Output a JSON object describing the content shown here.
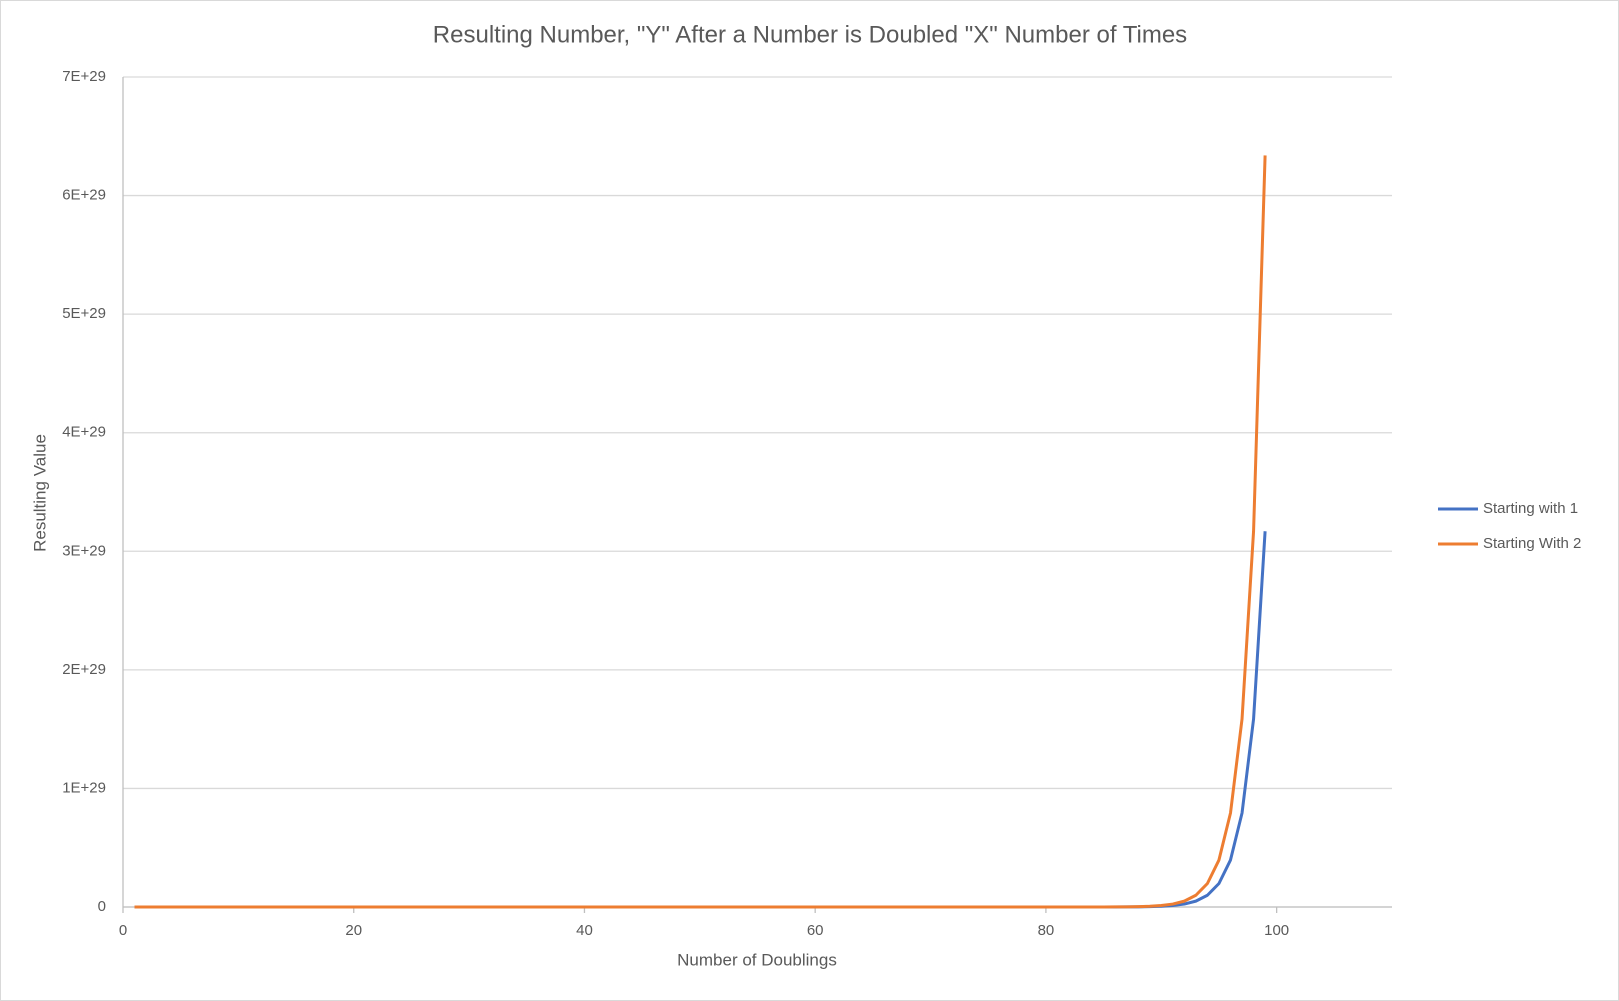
{
  "chart_data": {
    "type": "line",
    "title": "Resulting Number, \"Y\" After a Number is Doubled \"X\" Number of Times",
    "x_label": "Number of Doublings",
    "y_label": "Resulting Value",
    "x": [
      1,
      2,
      3,
      4,
      5,
      6,
      7,
      8,
      9,
      10,
      11,
      12,
      13,
      14,
      15,
      16,
      17,
      18,
      19,
      20,
      21,
      22,
      23,
      24,
      25,
      26,
      27,
      28,
      29,
      30,
      31,
      32,
      33,
      34,
      35,
      36,
      37,
      38,
      39,
      40,
      41,
      42,
      43,
      44,
      45,
      46,
      47,
      48,
      49,
      50,
      51,
      52,
      53,
      54,
      55,
      56,
      57,
      58,
      59,
      60,
      61,
      62,
      63,
      64,
      65,
      66,
      67,
      68,
      69,
      70,
      71,
      72,
      73,
      74,
      75,
      76,
      77,
      78,
      79,
      80,
      81,
      82,
      83,
      84,
      85,
      86,
      87,
      88,
      89,
      90,
      91,
      92,
      93,
      94,
      95,
      96,
      97,
      98,
      99
    ],
    "series": [
      {
        "name": "Starting with 1",
        "color": "#4472c4",
        "values": [
          1,
          2,
          4,
          8,
          16,
          32,
          64,
          128,
          256,
          512,
          1024,
          2048,
          4096,
          8192,
          16384,
          32768,
          65536,
          131072,
          262144,
          524288,
          1048576,
          2097152,
          4194304,
          8388608,
          16777216,
          33554432,
          67108864,
          134217728,
          268435456,
          536870912,
          1073741824,
          2147483648,
          4294967296,
          8589934592,
          17179869184,
          34359738368,
          68719476736,
          137438953472,
          274877906944,
          549755813888,
          1099500000000.0,
          2199000000000.0,
          4398000000000.0,
          8796100000000.0,
          17592000000000.0,
          35184000000000.0,
          70369000000000.0,
          140740000000000.0,
          281470000000000.0,
          562950000000000.0,
          1125900000000000.0,
          2251800000000000.0,
          4503600000000000.0,
          9007200000000000.0,
          1.8014e+16,
          3.6029e+16,
          7.2058e+16,
          1.4412e+17,
          2.8823e+17,
          5.7646e+17,
          1.1529e+18,
          2.3058e+18,
          4.6117e+18,
          9.2234e+18,
          1.8447e+19,
          3.6893e+19,
          7.3787e+19,
          1.4757e+20,
          2.9515e+20,
          5.903e+20,
          1.1806e+21,
          2.3612e+21,
          4.7224e+21,
          9.4447e+21,
          1.8889e+22,
          3.7779e+22,
          7.5558e+22,
          1.5112e+23,
          3.0223e+23,
          6.0446e+23,
          1.2089e+24,
          2.4179e+24,
          4.8357e+24,
          9.6714e+24,
          1.9343e+25,
          3.8686e+25,
          7.7371e+25,
          1.5474e+26,
          3.0949e+26,
          6.1897e+26,
          1.2379e+27,
          2.4759e+27,
          4.9518e+27,
          9.9035e+27,
          1.9807e+28,
          3.9614e+28,
          7.9228e+28,
          1.5846e+29,
          3.1691e+29
        ]
      },
      {
        "name": "Starting With 2",
        "color": "#ed7d31",
        "values": [
          2,
          4,
          8,
          16,
          32,
          64,
          128,
          256,
          512,
          1024,
          2048,
          4096,
          8192,
          16384,
          32768,
          65536,
          131072,
          262144,
          524288,
          1048576,
          2097152,
          4194304,
          8388608,
          16777216,
          33554432,
          67108864,
          134217728,
          268435456,
          536870912,
          1073741824,
          2147483648,
          4294967296,
          8589934592,
          17179869184,
          34359738368,
          68719476736,
          137438953472,
          274877906944,
          549755813888,
          1099500000000.0,
          2199000000000.0,
          4398000000000.0,
          8796100000000.0,
          17592000000000.0,
          35184000000000.0,
          70369000000000.0,
          140740000000000.0,
          281470000000000.0,
          562950000000000.0,
          1125900000000000.0,
          2251800000000000.0,
          4503600000000000.0,
          9007200000000000.0,
          1.8014e+16,
          3.6029e+16,
          7.2058e+16,
          1.4412e+17,
          2.8823e+17,
          5.7646e+17,
          1.1529e+18,
          2.3058e+18,
          4.6117e+18,
          9.2234e+18,
          1.8447e+19,
          3.6893e+19,
          7.3787e+19,
          1.4757e+20,
          2.9515e+20,
          5.903e+20,
          1.1806e+21,
          2.3612e+21,
          4.7224e+21,
          9.4447e+21,
          1.8889e+22,
          3.7779e+22,
          7.5558e+22,
          1.5112e+23,
          3.0223e+23,
          6.0446e+23,
          1.2089e+24,
          2.4179e+24,
          4.8357e+24,
          9.6714e+24,
          1.9343e+25,
          3.8686e+25,
          7.7371e+25,
          1.5474e+26,
          3.0949e+26,
          6.1897e+26,
          1.2379e+27,
          2.4759e+27,
          4.9518e+27,
          9.9035e+27,
          1.9807e+28,
          3.9614e+28,
          7.9228e+28,
          1.5846e+29,
          3.1691e+29,
          6.3383e+29
        ]
      }
    ],
    "xlim": [
      0,
      110
    ],
    "xticks": [
      0,
      20,
      40,
      60,
      80,
      100
    ],
    "ylim": [
      0,
      7e+29
    ],
    "yticks": [
      0,
      {
        "value": 1e+29,
        "label": "1E+29"
      },
      {
        "value": 2e+29,
        "label": "2E+29"
      },
      {
        "value": 3e+29,
        "label": "3E+29"
      },
      {
        "value": 4e+29,
        "label": "4E+29"
      },
      {
        "value": 5e+29,
        "label": "5E+29"
      },
      {
        "value": 6e+29,
        "label": "6E+29"
      },
      {
        "value": 7e+29,
        "label": "7E+29"
      }
    ],
    "grid": true,
    "legend": "right"
  }
}
